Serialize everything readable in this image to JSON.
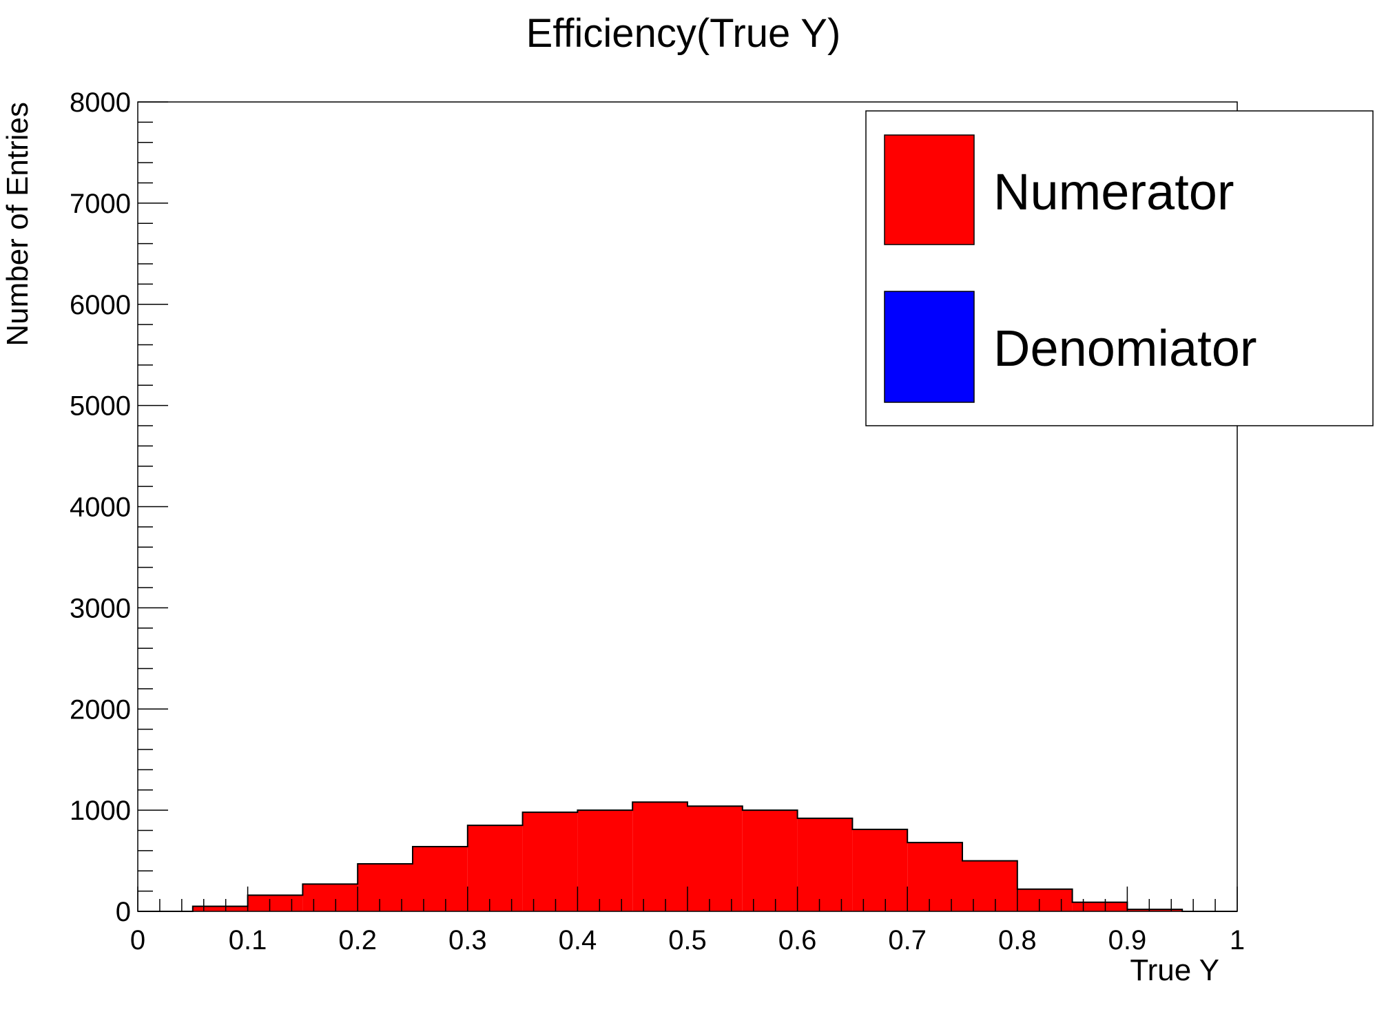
{
  "chart_data": {
    "type": "bar",
    "title": "Efficiency(True Y)",
    "xlabel": "True Y",
    "ylabel": "Number of Entries",
    "xlim": [
      0,
      1
    ],
    "ylim": [
      0,
      8000
    ],
    "x_ticks": [
      "0",
      "0.1",
      "0.2",
      "0.3",
      "0.4",
      "0.5",
      "0.6",
      "0.7",
      "0.8",
      "0.9",
      "1"
    ],
    "y_ticks": [
      "0",
      "1000",
      "2000",
      "3000",
      "4000",
      "5000",
      "6000",
      "7000",
      "8000"
    ],
    "grid": false,
    "legend_position": "top-right",
    "bin_edges": [
      0,
      0.05,
      0.1,
      0.15,
      0.2,
      0.25,
      0.3,
      0.35,
      0.4,
      0.45,
      0.5,
      0.55,
      0.6,
      0.65,
      0.7,
      0.75,
      0.8,
      0.85,
      0.9,
      0.95,
      1.0
    ],
    "series": [
      {
        "name": "Numerator",
        "color": "#ff0000",
        "values": [
          0,
          50,
          160,
          270,
          470,
          640,
          850,
          980,
          1000,
          1080,
          1040,
          1000,
          920,
          810,
          680,
          500,
          220,
          90,
          20,
          0
        ]
      },
      {
        "name": "Denomiator",
        "color": "#0000ff",
        "values": []
      }
    ]
  }
}
